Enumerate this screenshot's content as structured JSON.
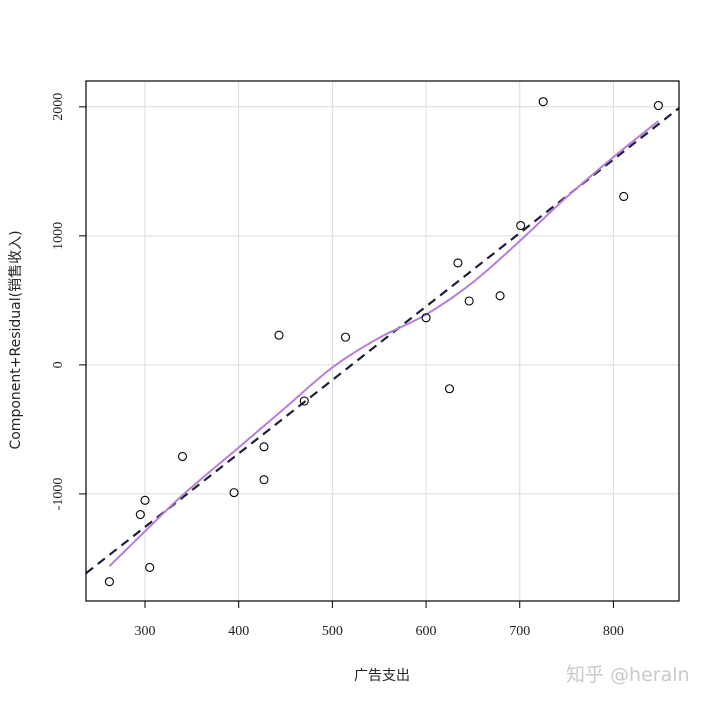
{
  "chart_data": {
    "type": "scatter",
    "xlabel": "广告支出",
    "ylabel": "Component+Residual(销售收入)",
    "xlim": [
      237,
      870
    ],
    "ylim": [
      -1830,
      2200
    ],
    "x_ticks": [
      300,
      400,
      500,
      600,
      700,
      800
    ],
    "y_ticks": [
      -1000,
      0,
      1000,
      2000
    ],
    "x_tick_labels": [
      "300",
      "400",
      "500",
      "600",
      "700",
      "800"
    ],
    "y_tick_labels": [
      "-1000",
      "0",
      "1000",
      "2000"
    ],
    "grid": true,
    "points": [
      {
        "x": 262,
        "y": -1680
      },
      {
        "x": 295,
        "y": -1160
      },
      {
        "x": 300,
        "y": -1050
      },
      {
        "x": 305,
        "y": -1570
      },
      {
        "x": 340,
        "y": -710
      },
      {
        "x": 395,
        "y": -990
      },
      {
        "x": 427,
        "y": -635
      },
      {
        "x": 427,
        "y": -890
      },
      {
        "x": 443,
        "y": 230
      },
      {
        "x": 470,
        "y": -280
      },
      {
        "x": 514,
        "y": 215
      },
      {
        "x": 600,
        "y": 365
      },
      {
        "x": 625,
        "y": -185
      },
      {
        "x": 634,
        "y": 790
      },
      {
        "x": 646,
        "y": 495
      },
      {
        "x": 679,
        "y": 535
      },
      {
        "x": 701,
        "y": 1080
      },
      {
        "x": 725,
        "y": 2040
      },
      {
        "x": 811,
        "y": 1305
      },
      {
        "x": 848,
        "y": 2010
      }
    ],
    "series": [
      {
        "style": "dashed",
        "color": "#1f1f3a",
        "x": [
          237,
          870
        ],
        "y": [
          -1615,
          1990
        ]
      },
      {
        "style": "smooth",
        "color": "#b57edc",
        "x": [
          262,
          300,
          340,
          400,
          450,
          500,
          550,
          600,
          650,
          700,
          750,
          800,
          848
        ],
        "y": [
          -1560,
          -1290,
          -1010,
          -640,
          -330,
          -20,
          210,
          390,
          640,
          960,
          1300,
          1610,
          1890
        ]
      }
    ]
  },
  "watermark": "知乎 @heraln"
}
